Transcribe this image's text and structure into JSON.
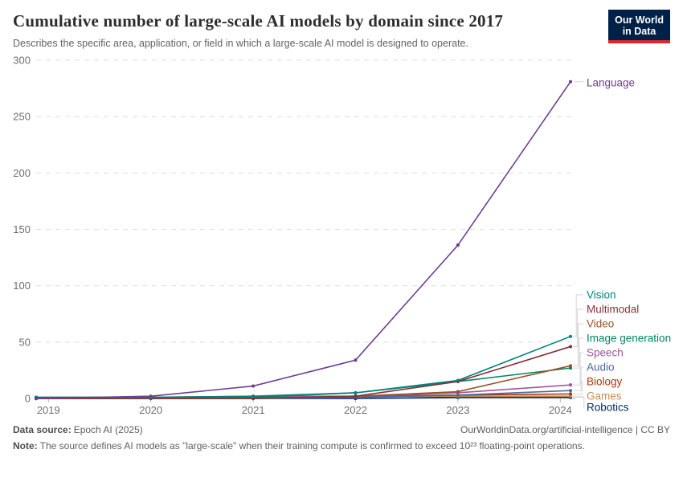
{
  "header": {
    "title": "Cumulative number of large-scale AI models by domain since 2017",
    "subtitle": "Describes the specific area, application, or field in which a large-scale AI model is designed to operate.",
    "logo": {
      "line1": "Our World",
      "line2": "in Data",
      "bg_color": "#002147",
      "accent_color": "#e0262c"
    }
  },
  "chart_data": {
    "type": "line",
    "title": "Cumulative number of large-scale AI models by domain since 2017",
    "x": [
      2019,
      2020,
      2021,
      2022,
      2023,
      2024
    ],
    "series": [
      {
        "name": "Language",
        "color": "#6d3e91",
        "values": [
          0,
          2,
          11,
          34,
          136,
          281
        ]
      },
      {
        "name": "Vision",
        "color": "#00847e",
        "values": [
          1,
          1,
          2,
          5,
          16,
          55
        ]
      },
      {
        "name": "Multimodal",
        "color": "#883039",
        "values": [
          0,
          0,
          0,
          2,
          15,
          46
        ]
      },
      {
        "name": "Video",
        "color": "#9a5129",
        "values": [
          0,
          0,
          0,
          2,
          6,
          29
        ]
      },
      {
        "name": "Image generation",
        "color": "#00875e",
        "values": [
          0,
          0,
          1,
          5,
          15,
          27
        ]
      },
      {
        "name": "Speech",
        "color": "#a2559c",
        "values": [
          1,
          1,
          1,
          2,
          5,
          12
        ]
      },
      {
        "name": "Audio",
        "color": "#4c6a9c",
        "values": [
          0,
          0,
          0,
          1,
          3,
          7
        ]
      },
      {
        "name": "Biology",
        "color": "#b13507",
        "values": [
          0,
          0,
          1,
          2,
          3,
          4
        ]
      },
      {
        "name": "Games",
        "color": "#bc8e5a",
        "values": [
          1,
          1,
          2,
          2,
          2,
          2
        ]
      },
      {
        "name": "Robotics",
        "color": "#00295b",
        "values": [
          0,
          0,
          0,
          0,
          1,
          1
        ]
      }
    ],
    "ylim": [
      0,
      300
    ],
    "yticks": [
      0,
      50,
      100,
      150,
      200,
      250,
      300
    ],
    "grid": "horizontal-dashed",
    "legend_position": "end-of-line-labels-right"
  },
  "footer": {
    "source_label": "Data source:",
    "source_value": "Epoch AI (2025)",
    "credit": "OurWorldinData.org/artificial-intelligence | CC BY",
    "note_label": "Note:",
    "note_value": "The source defines AI models as \"large-scale\" when their training compute is confirmed to exceed 10²³ floating-point operations."
  }
}
